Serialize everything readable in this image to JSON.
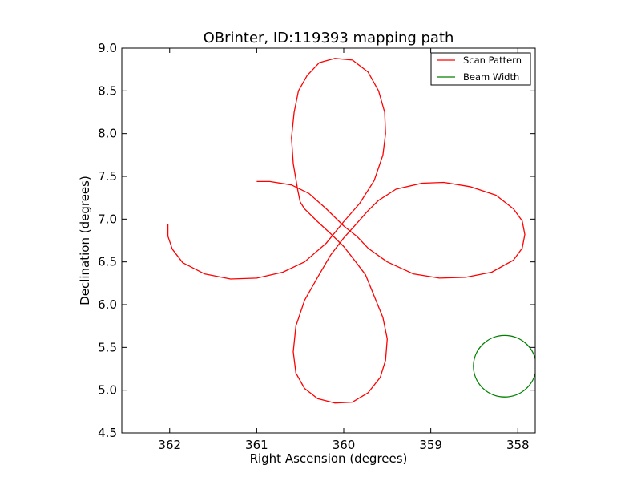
{
  "chart_data": {
    "type": "line",
    "title": "OBrinter, ID:119393 mapping path",
    "xlabel": "Right Ascension (degrees)",
    "ylabel": "Declination (degrees)",
    "xlim": [
      362.55,
      357.8
    ],
    "ylim": [
      4.5,
      9.0
    ],
    "x_ticks": [
      362,
      361,
      360,
      359,
      358
    ],
    "x_tick_labels": [
      "362",
      "361",
      "360",
      "359",
      "358"
    ],
    "y_ticks": [
      4.5,
      5.0,
      5.5,
      6.0,
      6.5,
      7.0,
      7.5,
      8.0,
      8.5,
      9.0
    ],
    "y_tick_labels": [
      "4.5",
      "5.0",
      "5.5",
      "6.0",
      "6.5",
      "7.0",
      "7.5",
      "8.0",
      "8.5",
      "9.0"
    ],
    "grid": false,
    "legend_position": "top-right",
    "legend": [
      {
        "label": "Scan Pattern",
        "color": "#ff0000"
      },
      {
        "label": "Beam Width",
        "color": "#008000"
      }
    ],
    "series": [
      {
        "name": "Scan Pattern",
        "color": "#ff0000",
        "points": [
          [
            361.0,
            7.44
          ],
          [
            360.85,
            7.44
          ],
          [
            360.6,
            7.4
          ],
          [
            360.4,
            7.3
          ],
          [
            360.2,
            7.12
          ],
          [
            360.0,
            6.92
          ],
          [
            359.85,
            6.8
          ],
          [
            359.72,
            6.66
          ],
          [
            359.5,
            6.5
          ],
          [
            359.2,
            6.36
          ],
          [
            358.9,
            6.31
          ],
          [
            358.6,
            6.32
          ],
          [
            358.3,
            6.38
          ],
          [
            358.05,
            6.52
          ],
          [
            357.95,
            6.66
          ],
          [
            357.92,
            6.82
          ],
          [
            357.95,
            6.98
          ],
          [
            358.05,
            7.12
          ],
          [
            358.25,
            7.28
          ],
          [
            358.55,
            7.38
          ],
          [
            358.85,
            7.43
          ],
          [
            359.1,
            7.42
          ],
          [
            359.4,
            7.35
          ],
          [
            359.6,
            7.22
          ],
          [
            359.72,
            7.1
          ],
          [
            359.85,
            6.95
          ],
          [
            360.0,
            6.78
          ],
          [
            360.15,
            6.58
          ],
          [
            360.3,
            6.32
          ],
          [
            360.45,
            6.05
          ],
          [
            360.55,
            5.75
          ],
          [
            360.58,
            5.45
          ],
          [
            360.55,
            5.2
          ],
          [
            360.45,
            5.02
          ],
          [
            360.3,
            4.9
          ],
          [
            360.1,
            4.85
          ],
          [
            359.9,
            4.86
          ],
          [
            359.72,
            4.97
          ],
          [
            359.58,
            5.15
          ],
          [
            359.52,
            5.35
          ],
          [
            359.5,
            5.6
          ],
          [
            359.55,
            5.85
          ],
          [
            359.65,
            6.1
          ],
          [
            359.75,
            6.35
          ],
          [
            359.9,
            6.55
          ],
          [
            360.0,
            6.68
          ],
          [
            360.15,
            6.83
          ],
          [
            360.3,
            6.97
          ],
          [
            360.45,
            7.12
          ],
          [
            360.5,
            7.2
          ],
          [
            360.53,
            7.35
          ],
          [
            360.58,
            7.65
          ],
          [
            360.6,
            7.95
          ],
          [
            360.57,
            8.25
          ],
          [
            360.52,
            8.5
          ],
          [
            360.42,
            8.68
          ],
          [
            360.28,
            8.83
          ],
          [
            360.1,
            8.88
          ],
          [
            359.9,
            8.86
          ],
          [
            359.72,
            8.72
          ],
          [
            359.6,
            8.5
          ],
          [
            359.53,
            8.25
          ],
          [
            359.52,
            8.0
          ],
          [
            359.55,
            7.75
          ],
          [
            359.65,
            7.45
          ],
          [
            359.82,
            7.18
          ],
          [
            360.0,
            6.97
          ],
          [
            360.2,
            6.72
          ],
          [
            360.45,
            6.5
          ],
          [
            360.7,
            6.38
          ],
          [
            361.0,
            6.31
          ],
          [
            361.3,
            6.3
          ],
          [
            361.6,
            6.36
          ],
          [
            361.85,
            6.49
          ],
          [
            361.97,
            6.65
          ],
          [
            362.02,
            6.8
          ],
          [
            362.02,
            6.94
          ]
        ]
      }
    ],
    "beam": {
      "name": "Beam Width",
      "color": "#008000",
      "center": [
        358.15,
        5.28
      ],
      "radius": 0.36
    }
  }
}
